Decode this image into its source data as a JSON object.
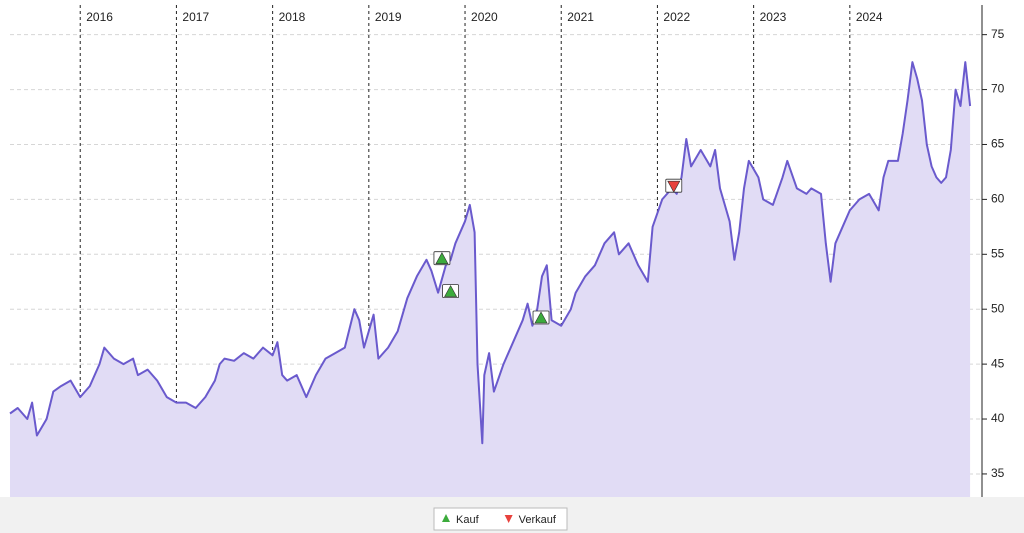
{
  "chart_data": {
    "type": "line",
    "color": "#6a5acd",
    "fill": "#e1dcf5",
    "xlim": [
      2015.27,
      2025.27
    ],
    "xticks": [
      2016,
      2017,
      2018,
      2019,
      2020,
      2021,
      2022,
      2023,
      2024
    ],
    "ylim": [
      32.9,
      77.7
    ],
    "yticks": [
      35,
      40,
      45,
      50,
      55,
      60,
      65,
      70,
      75
    ],
    "grid": true,
    "x": [
      2015.27,
      2015.35,
      2015.45,
      2015.5,
      2015.55,
      2015.65,
      2015.72,
      2015.8,
      2015.9,
      2016.0,
      2016.1,
      2016.2,
      2016.25,
      2016.35,
      2016.45,
      2016.55,
      2016.6,
      2016.7,
      2016.8,
      2016.9,
      2017.0,
      2017.1,
      2017.2,
      2017.3,
      2017.4,
      2017.45,
      2017.5,
      2017.6,
      2017.7,
      2017.8,
      2017.9,
      2018.0,
      2018.05,
      2018.1,
      2018.15,
      2018.25,
      2018.35,
      2018.45,
      2018.55,
      2018.65,
      2018.75,
      2018.85,
      2018.9,
      2018.95,
      2019.0,
      2019.05,
      2019.1,
      2019.2,
      2019.3,
      2019.4,
      2019.5,
      2019.6,
      2019.65,
      2019.72,
      2019.8,
      2019.85,
      2019.9,
      2020.0,
      2020.05,
      2020.1,
      2020.13,
      2020.18,
      2020.2,
      2020.25,
      2020.3,
      2020.4,
      2020.5,
      2020.6,
      2020.65,
      2020.7,
      2020.75,
      2020.8,
      2020.85,
      2020.9,
      2021.0,
      2021.1,
      2021.15,
      2021.25,
      2021.35,
      2021.45,
      2021.55,
      2021.6,
      2021.7,
      2021.8,
      2021.9,
      2021.95,
      2022.05,
      2022.15,
      2022.2,
      2022.25,
      2022.3,
      2022.35,
      2022.45,
      2022.55,
      2022.6,
      2022.65,
      2022.75,
      2022.8,
      2022.85,
      2022.9,
      2022.95,
      2023.05,
      2023.1,
      2023.2,
      2023.3,
      2023.35,
      2023.45,
      2023.55,
      2023.6,
      2023.7,
      2023.75,
      2023.8,
      2023.85,
      2023.95,
      2024.0,
      2024.1,
      2024.2,
      2024.3,
      2024.35,
      2024.4,
      2024.5,
      2024.55,
      2024.6,
      2024.65,
      2024.7,
      2024.75,
      2024.8,
      2024.85,
      2024.9,
      2024.95,
      2025.0,
      2025.05,
      2025.1,
      2025.15,
      2025.2,
      2025.25
    ],
    "values": [
      40.5,
      41,
      40,
      41.5,
      38.5,
      40,
      42.5,
      43,
      43.5,
      42,
      43,
      45,
      46.5,
      45.5,
      45,
      45.5,
      44,
      44.5,
      43.5,
      42,
      41.5,
      41.5,
      41,
      42,
      43.5,
      45,
      45.5,
      45.3,
      46,
      45.5,
      46.5,
      45.8,
      47,
      44,
      43.5,
      44,
      42,
      44,
      45.5,
      46,
      46.5,
      50,
      49,
      46.5,
      48,
      49.5,
      45.5,
      46.5,
      48,
      51,
      53,
      54.5,
      53.5,
      51.5,
      54,
      54.5,
      56,
      58,
      59.5,
      57,
      45,
      37.8,
      44,
      46,
      42.5,
      45,
      47,
      49,
      50.5,
      48.5,
      50,
      53,
      54,
      49,
      48.5,
      50,
      51.5,
      53,
      54,
      56,
      57,
      55,
      56,
      54,
      52.5,
      57.5,
      60,
      61,
      60.5,
      62,
      65.5,
      63,
      64.5,
      63,
      64.5,
      61,
      58,
      54.5,
      57,
      61,
      63.5,
      62,
      60,
      59.5,
      62,
      63.5,
      61,
      60.5,
      61,
      60.5,
      56,
      52.5,
      56,
      58,
      59,
      60,
      60.5,
      59,
      62,
      63.5,
      63.5,
      66,
      69,
      72.5,
      71,
      69,
      65,
      63,
      62,
      61.5,
      62,
      64.5,
      70,
      68.5,
      72.5,
      68.5
    ],
    "signals": [
      {
        "name": "Kauf",
        "color": "#3cab3c",
        "marker": "triangle-up",
        "x": [
          2019.76,
          2019.85,
          2020.79
        ],
        "values": [
          54.6,
          51.6,
          49.2
        ]
      },
      {
        "name": "Verkauf",
        "color": "#e8413c",
        "marker": "triangle-down",
        "x": [
          2022.17
        ],
        "values": [
          61.2
        ]
      }
    ]
  }
}
